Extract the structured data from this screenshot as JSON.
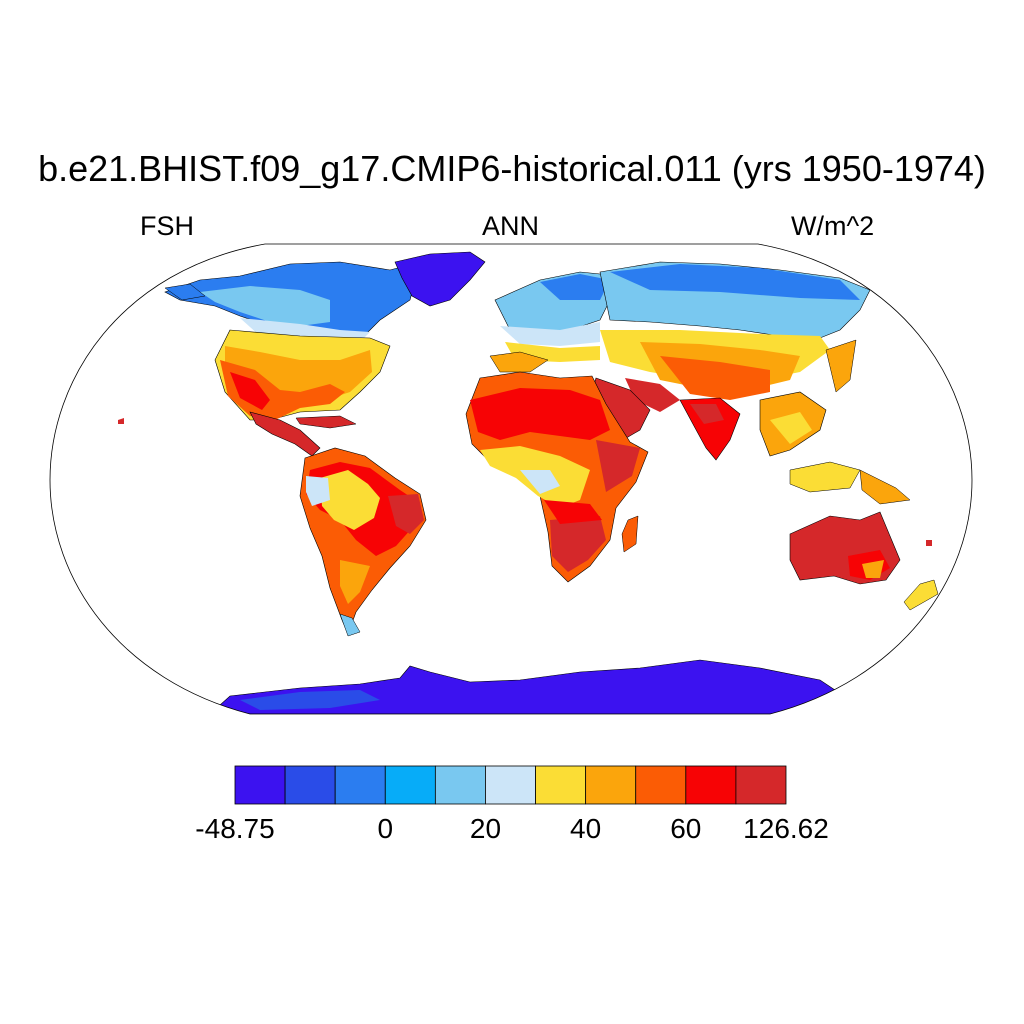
{
  "title": "b.e21.BHIST.f09_g17.CMIP6-historical.011 (yrs 1950-1974)",
  "left_string": "FSH",
  "center_string": "ANN",
  "right_string": "W/m^2",
  "projection": "robinson",
  "colorbar": {
    "colors": [
      "#3c12f0",
      "#2a4ce8",
      "#2b7df0",
      "#07acf8",
      "#79c8f0",
      "#cce5f8",
      "#fbdd35",
      "#fba50c",
      "#fb5c05",
      "#f70305",
      "#d5282a"
    ],
    "tick_labels": [
      "-48.75",
      "0",
      "20",
      "40",
      "60",
      "126.62"
    ]
  },
  "map_data": {
    "field": "FSH",
    "season": "ANN",
    "units": "W/m^2",
    "min": -48.75,
    "max": 126.62
  }
}
